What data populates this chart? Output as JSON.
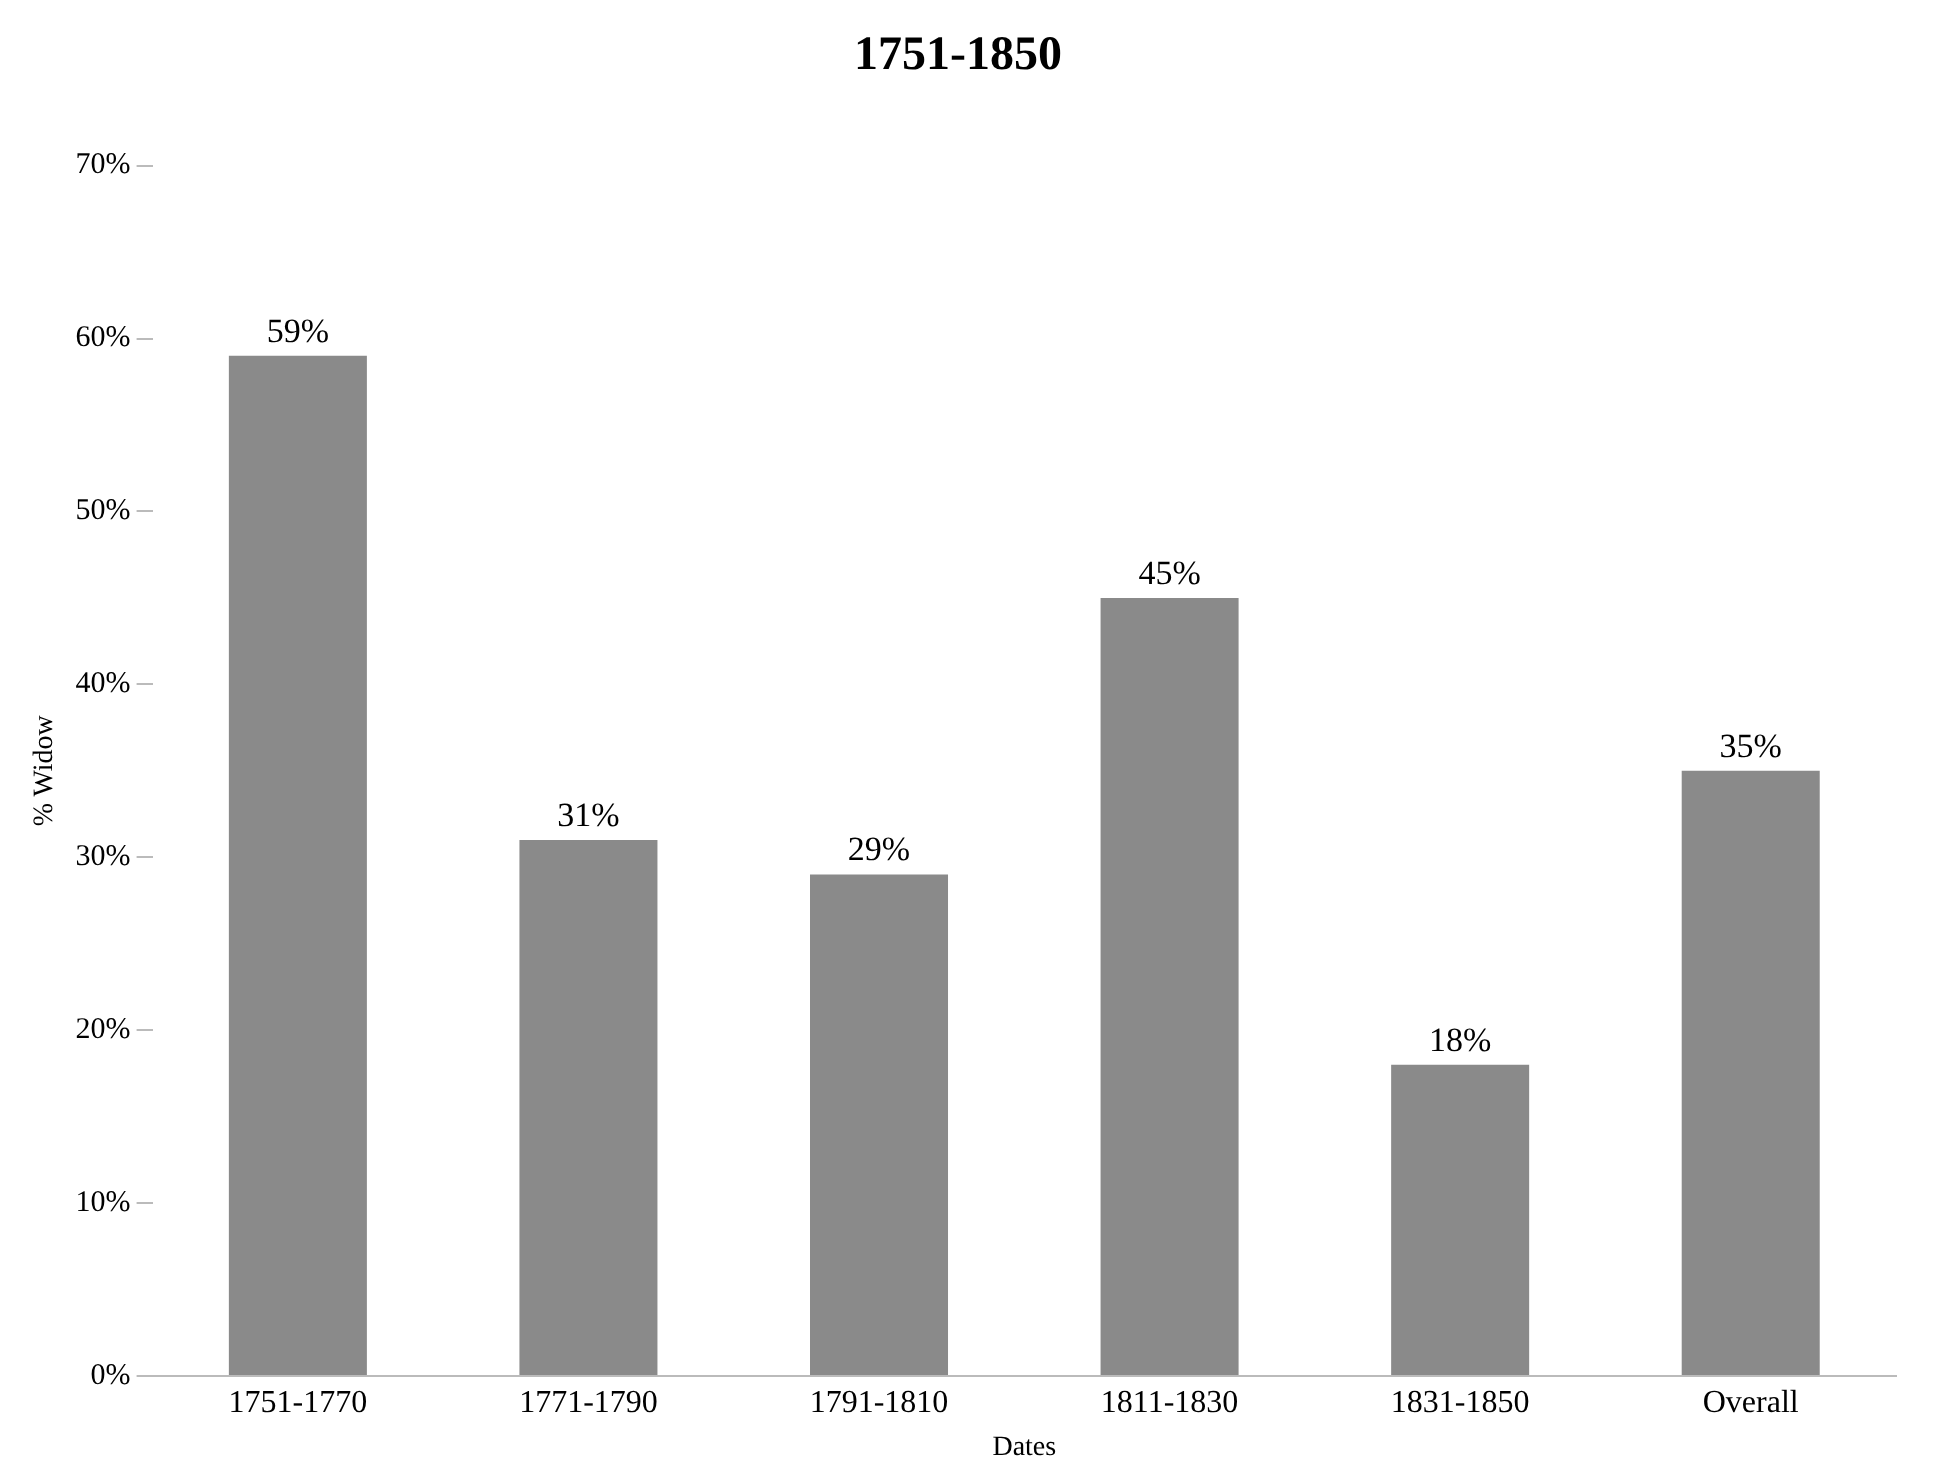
{
  "chart_data": {
    "type": "bar",
    "title": "1751-1850",
    "xlabel": "Dates",
    "ylabel": "% Widow",
    "categories": [
      "1751-1770",
      "1771-1790",
      "1791-1810",
      "1811-1830",
      "1831-1850",
      "Overall"
    ],
    "values": [
      59,
      31,
      29,
      45,
      18,
      35
    ],
    "value_labels": [
      "59%",
      "31%",
      "29%",
      "45%",
      "18%",
      "35%"
    ],
    "color": "#8a8a8a",
    "ylim": [
      0,
      70
    ],
    "yticks": [
      {
        "value": 0,
        "label": "0%"
      },
      {
        "value": 10,
        "label": "10%"
      },
      {
        "value": 20,
        "label": "20%"
      },
      {
        "value": 30,
        "label": "30%"
      },
      {
        "value": 40,
        "label": "40%"
      },
      {
        "value": 50,
        "label": "50%"
      },
      {
        "value": 60,
        "label": "60%"
      },
      {
        "value": 70,
        "label": "70%"
      }
    ],
    "grid": false,
    "legend": false
  }
}
